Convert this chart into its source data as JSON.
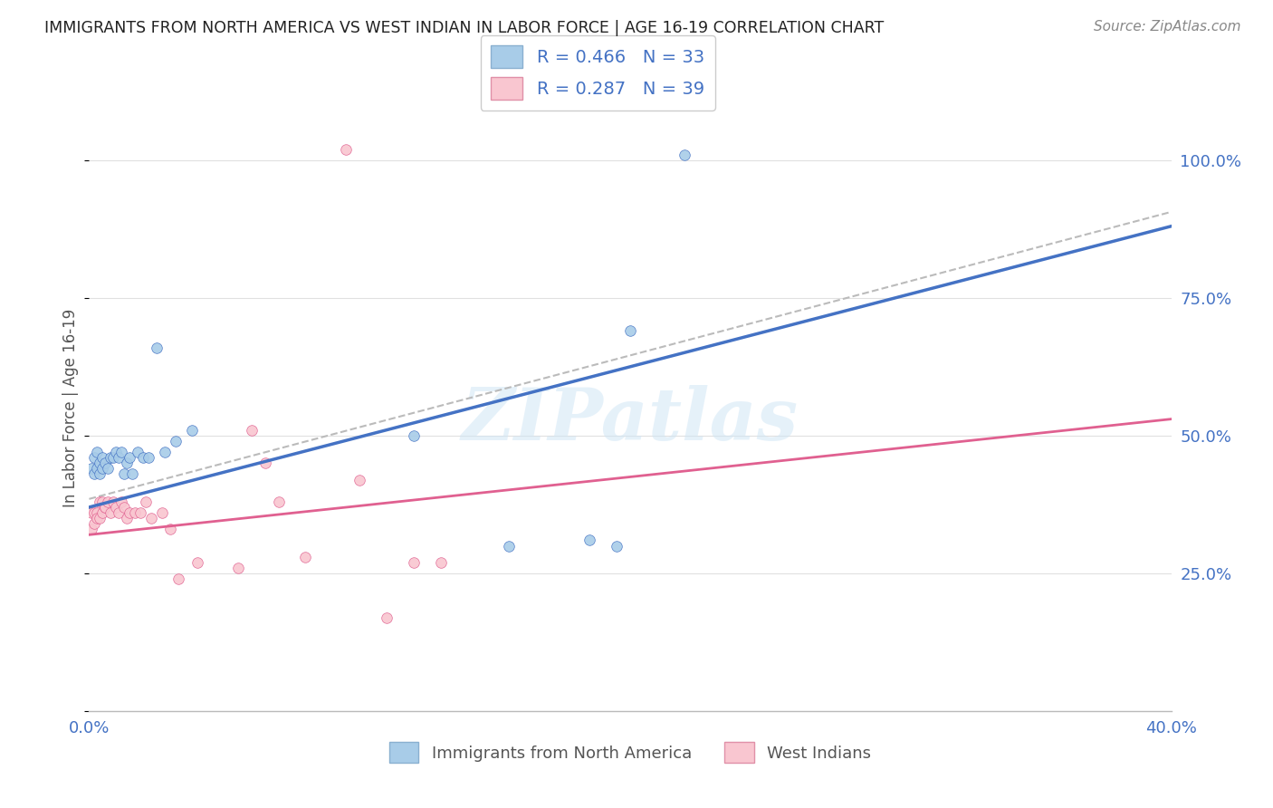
{
  "title": "IMMIGRANTS FROM NORTH AMERICA VS WEST INDIAN IN LABOR FORCE | AGE 16-19 CORRELATION CHART",
  "source": "Source: ZipAtlas.com",
  "ylabel": "In Labor Force | Age 16-19",
  "legend_r1": "R = 0.466",
  "legend_n1": "N = 33",
  "legend_r2": "R = 0.287",
  "legend_n2": "N = 39",
  "blue_color": "#a8cce8",
  "pink_color": "#f9c6d0",
  "blue_line_color": "#4472c4",
  "pink_line_color": "#e06090",
  "dashed_line_color": "#bbbbbb",
  "background_color": "#ffffff",
  "grid_color": "#e0e0e0",
  "text_color_blue": "#4472c4",
  "text_color_dark": "#333333",
  "watermark": "ZIPatlas",
  "xlim": [
    0,
    0.4
  ],
  "ylim": [
    0,
    1.1
  ],
  "na_x": [
    0.001,
    0.002,
    0.002,
    0.003,
    0.003,
    0.004,
    0.004,
    0.005,
    0.005,
    0.006,
    0.007,
    0.008,
    0.009,
    0.01,
    0.011,
    0.012,
    0.013,
    0.014,
    0.015,
    0.016,
    0.018,
    0.02,
    0.022,
    0.025,
    0.028,
    0.032,
    0.038,
    0.12,
    0.155,
    0.185,
    0.195,
    0.2,
    0.22
  ],
  "na_y": [
    0.44,
    0.43,
    0.46,
    0.44,
    0.47,
    0.43,
    0.45,
    0.44,
    0.46,
    0.45,
    0.44,
    0.46,
    0.46,
    0.47,
    0.46,
    0.47,
    0.43,
    0.45,
    0.46,
    0.43,
    0.47,
    0.46,
    0.46,
    0.66,
    0.47,
    0.49,
    0.51,
    0.5,
    0.3,
    0.31,
    0.3,
    0.69,
    1.01
  ],
  "wi_x": [
    0.001,
    0.001,
    0.002,
    0.002,
    0.003,
    0.003,
    0.004,
    0.004,
    0.005,
    0.005,
    0.006,
    0.006,
    0.007,
    0.008,
    0.009,
    0.01,
    0.011,
    0.012,
    0.013,
    0.014,
    0.015,
    0.017,
    0.019,
    0.021,
    0.023,
    0.027,
    0.03,
    0.033,
    0.04,
    0.055,
    0.06,
    0.065,
    0.07,
    0.08,
    0.095,
    0.1,
    0.11,
    0.12,
    0.13
  ],
  "wi_y": [
    0.36,
    0.33,
    0.36,
    0.34,
    0.36,
    0.35,
    0.38,
    0.35,
    0.38,
    0.36,
    0.37,
    0.37,
    0.38,
    0.36,
    0.38,
    0.37,
    0.36,
    0.38,
    0.37,
    0.35,
    0.36,
    0.36,
    0.36,
    0.38,
    0.35,
    0.36,
    0.33,
    0.24,
    0.27,
    0.26,
    0.51,
    0.45,
    0.38,
    0.28,
    1.02,
    0.42,
    0.17,
    0.27,
    0.27
  ]
}
